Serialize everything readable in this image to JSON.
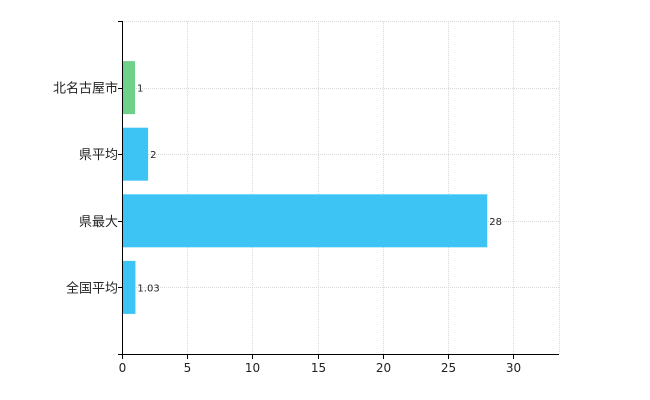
{
  "chart_data": {
    "type": "bar",
    "orientation": "horizontal",
    "title": "",
    "xlabel": "",
    "ylabel": "",
    "categories": [
      "北名古屋市",
      "県平均",
      "県最大",
      "全国平均"
    ],
    "values": [
      1,
      2,
      28,
      1.03
    ],
    "data_labels": [
      "1",
      "2",
      "28",
      "1.03"
    ],
    "bar_colors": [
      "#6fd08a",
      "#3ec4f4",
      "#3ec4f4",
      "#3ec4f4"
    ],
    "xlim": [
      0,
      33.5
    ],
    "xticks": [
      0,
      5,
      10,
      15,
      20,
      25,
      30
    ],
    "grid": true,
    "legend": "none"
  }
}
